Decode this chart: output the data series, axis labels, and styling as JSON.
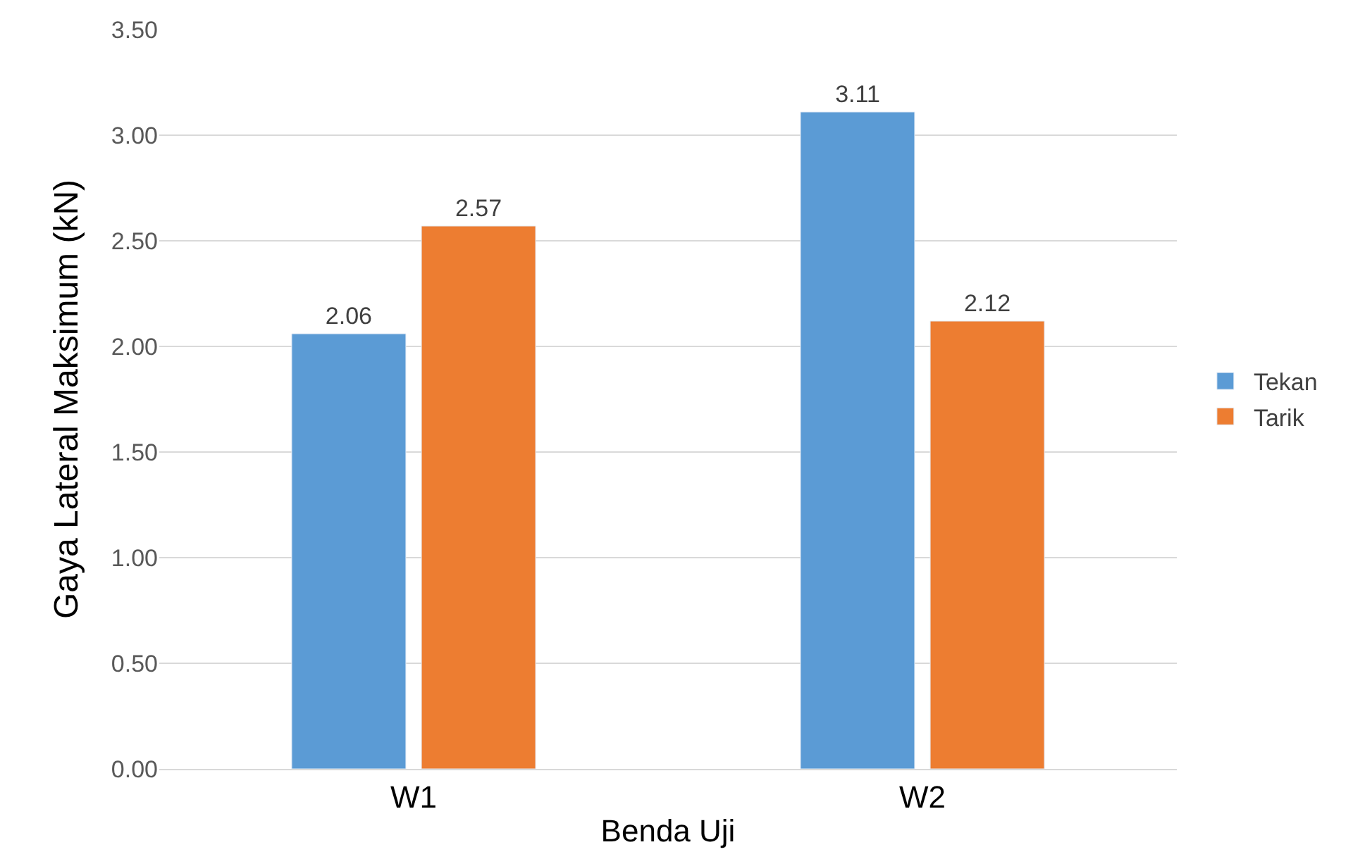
{
  "chart_data": {
    "type": "bar",
    "xlabel": "Benda Uji",
    "ylabel": "Gaya Lateral Maksimum (kN)",
    "categories": [
      "W1",
      "W2"
    ],
    "series": [
      {
        "name": "Tekan",
        "color": "#5b9bd5",
        "values": [
          2.06,
          3.11
        ]
      },
      {
        "name": "Tarik",
        "color": "#ed7d31",
        "values": [
          2.57,
          2.12
        ]
      }
    ],
    "ylim": [
      0,
      3.5
    ],
    "yticks": [
      {
        "value": 0,
        "label": "0.00"
      },
      {
        "value": 0.5,
        "label": "0.50"
      },
      {
        "value": 1,
        "label": "1.00"
      },
      {
        "value": 1.5,
        "label": "1.50"
      },
      {
        "value": 2,
        "label": "2.00"
      },
      {
        "value": 2.5,
        "label": "2.50"
      },
      {
        "value": 3,
        "label": "3.00"
      },
      {
        "value": 3.5,
        "label": "3.50"
      }
    ],
    "grid": "y",
    "legend": "right",
    "data_labels": true
  }
}
